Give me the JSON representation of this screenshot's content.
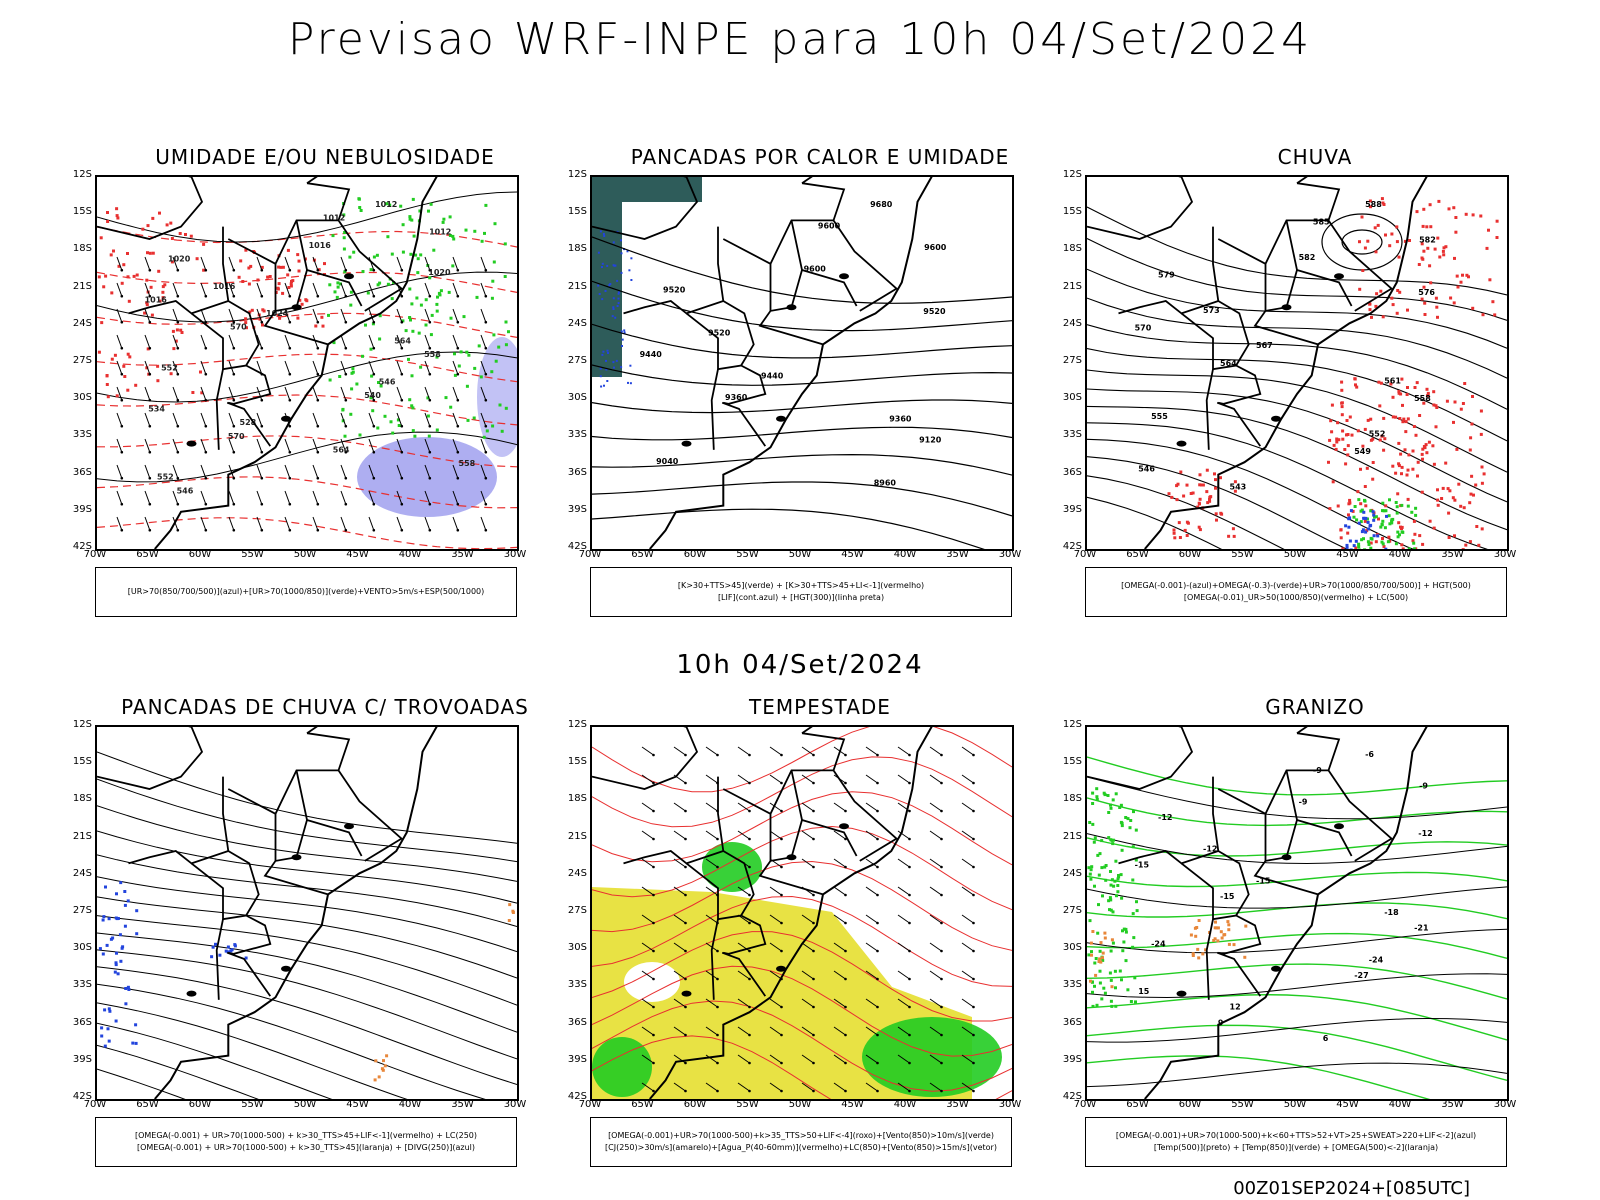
{
  "main_title": "Previsao WRF-INPE  para 10h 04/Set/2024",
  "mid_title": "10h 04/Set/2024",
  "footer_stamp": "00Z01SEP2024+[085UTC]",
  "lat_ticks": [
    "12S",
    "15S",
    "18S",
    "21S",
    "24S",
    "27S",
    "30S",
    "33S",
    "36S",
    "39S",
    "42S"
  ],
  "lon_ticks": [
    "70W",
    "65W",
    "60W",
    "55W",
    "50W",
    "45W",
    "40W",
    "35W",
    "30W"
  ],
  "colors": {
    "red": "#e83030",
    "green": "#22cc22",
    "blue": "#2244dd",
    "lavender": "#9a9aee",
    "yellow": "#e6df30",
    "orange": "#e8873a",
    "teal": "#2e5c5a"
  },
  "panels": [
    {
      "title": "UMIDADE E/OU NEBULOSIDADE",
      "legend_lines": [
        "[UR>70(850/700/500)](azul)+[UR>70(1000/850)](verde)+VENTO>5m/s+ESP(500/1000)"
      ],
      "contour_labels": [
        "1012",
        "1012",
        "1012",
        "1016",
        "1020",
        "1020",
        "1016",
        "1016",
        "1024",
        "570",
        "564",
        "558",
        "552",
        "546",
        "540",
        "534",
        "528",
        "570",
        "564",
        "558",
        "552",
        "546"
      ]
    },
    {
      "title": "PANCADAS POR CALOR E UMIDADE",
      "legend_lines": [
        "[K>30+TTS>45](verde) + [K>30+TTS>45+LI<-1](vermelho)",
        "[LIF](cont.azul) + [HGT(300)](linha preta)"
      ],
      "contour_labels": [
        "9680",
        "9600",
        "9600",
        "9600",
        "9520",
        "9520",
        "9520",
        "9440",
        "9440",
        "9360",
        "9360",
        "9120",
        "9040",
        "8960"
      ]
    },
    {
      "title": "CHUVA",
      "legend_lines": [
        "[OMEGA(-0.001)-(azul)+OMEGA(-0.3)-(verde)+UR>70(1000/850/700/500)] + HGT(500)",
        "[OMEGA(-0.01)_UR>50(1000/850)(vermelho) + LC(500)"
      ],
      "contour_labels": [
        "588",
        "585",
        "582",
        "582",
        "579",
        "576",
        "573",
        "570",
        "567",
        "564",
        "561",
        "558",
        "555",
        "552",
        "549",
        "546",
        "543"
      ]
    },
    {
      "title": "PANCADAS DE CHUVA C/ TROVOADAS",
      "legend_lines": [
        "[OMEGA(-0.001) + UR>70(1000-500) + k>30_TTS>45+LIF<-1](vermelho) + LC(250)",
        "[OMEGA(-0.001) + UR>70(1000-500) + k>30_TTS>45](laranja) + [DIVG(250)](azul)"
      ],
      "contour_labels": []
    },
    {
      "title": "TEMPESTADE",
      "legend_lines": [
        "[OMEGA(-0.001)+UR>70(1000-500)+k>35_TTS>50+LIF<-4](roxo)+[Vento(850)>10m/s](verde)",
        "[CJ(250)>30m/s](amarelo)+[Agua_P(40-60mm)](vermelho)+LC(850)+[Vento(850)>15m/s](vetor)"
      ],
      "contour_labels": []
    },
    {
      "title": "GRANIZO",
      "legend_lines": [
        "[OMEGA(-0.001)+UR>70(1000-500)+k<60+TTS>52+VT>25+SWEAT>220+LIF<-2](azul)",
        "[Temp(500)](preto) + [Temp(850)](verde) + [OMEGA(500)<-2](laranja)"
      ],
      "contour_labels": [
        "-6",
        "-9",
        "-9",
        "-9",
        "-12",
        "-12",
        "-12",
        "-15",
        "-15",
        "-15",
        "-18",
        "-21",
        "-24",
        "-24",
        "-27",
        "15",
        "12",
        "9",
        "6"
      ]
    }
  ]
}
